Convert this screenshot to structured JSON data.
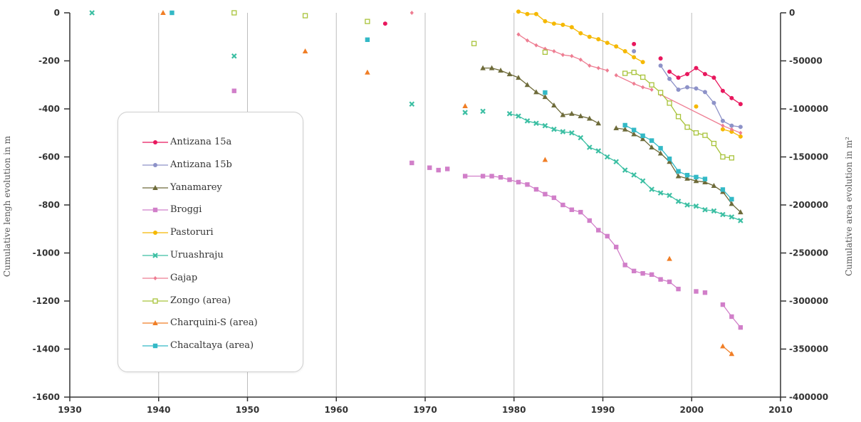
{
  "chart_data": {
    "type": "line",
    "xlim": [
      1930,
      2010
    ],
    "x_ticks": [
      "1930",
      "1940",
      "1950",
      "1960",
      "1970",
      "1980",
      "1990",
      "2000",
      "2010"
    ],
    "ylim_left": [
      -1600,
      0
    ],
    "y_ticks_left": [
      "0",
      "-200",
      "-400",
      "-600",
      "-800",
      "-1000",
      "-1200",
      "-1400",
      "-1600"
    ],
    "ylim_right": [
      -400000,
      0
    ],
    "y_ticks_right": [
      "0",
      "-50000",
      "-100000",
      "-150000",
      "-200000",
      "-250000",
      "-300000",
      "-350000",
      "-400000"
    ],
    "ylabel_left": "Cumulative lengh evolution in m",
    "ylabel_right": "Cumulative area evolution in m²",
    "grid": "vertical",
    "legend_position": "inside-left",
    "series": [
      {
        "name": "Antizana 15a",
        "color": "#e8175d",
        "marker": "circle",
        "axis": "left",
        "points": [
          [
            1965.5,
            -45
          ],
          [
            1993.5,
            -130
          ],
          [
            1996.5,
            -190
          ],
          [
            1997.5,
            -245
          ],
          [
            1998.5,
            -270
          ],
          [
            1999.5,
            -255
          ],
          [
            2000.5,
            -230
          ],
          [
            2001.5,
            -255
          ],
          [
            2002.5,
            -270
          ],
          [
            2003.5,
            -325
          ],
          [
            2004.5,
            -355
          ],
          [
            2005.5,
            -380
          ]
        ],
        "lines": [
          [
            3,
            11
          ]
        ]
      },
      {
        "name": "Antizana 15b",
        "color": "#8d92c8",
        "marker": "circle",
        "axis": "left",
        "points": [
          [
            1993.5,
            -160
          ],
          [
            1996.5,
            -220
          ],
          [
            1997.5,
            -275
          ],
          [
            1998.5,
            -320
          ],
          [
            1999.5,
            -310
          ],
          [
            2000.5,
            -315
          ],
          [
            2001.5,
            -330
          ],
          [
            2002.5,
            -375
          ],
          [
            2003.5,
            -450
          ],
          [
            2004.5,
            -470
          ],
          [
            2005.5,
            -475
          ]
        ],
        "lines": [
          [
            1,
            10
          ]
        ]
      },
      {
        "name": "Yanamarey",
        "color": "#6e6b3a",
        "marker": "triangle",
        "axis": "left",
        "points": [
          [
            1976.5,
            -230
          ],
          [
            1977.5,
            -230
          ],
          [
            1978.5,
            -240
          ],
          [
            1979.5,
            -255
          ],
          [
            1980.5,
            -270
          ],
          [
            1981.5,
            -300
          ],
          [
            1982.5,
            -330
          ],
          [
            1983.5,
            -350
          ],
          [
            1984.5,
            -385
          ],
          [
            1985.5,
            -425
          ],
          [
            1986.5,
            -420
          ],
          [
            1987.5,
            -430
          ],
          [
            1988.5,
            -440
          ],
          [
            1989.5,
            -460
          ],
          [
            1991.5,
            -480
          ],
          [
            1992.5,
            -485
          ],
          [
            1993.5,
            -505
          ],
          [
            1994.5,
            -525
          ],
          [
            1995.5,
            -560
          ],
          [
            1996.5,
            -585
          ],
          [
            1997.5,
            -620
          ],
          [
            1998.5,
            -680
          ],
          [
            1999.5,
            -690
          ],
          [
            2000.5,
            -700
          ],
          [
            2001.5,
            -705
          ],
          [
            2002.5,
            -720
          ],
          [
            2003.5,
            -745
          ],
          [
            2004.5,
            -795
          ],
          [
            2005.5,
            -830
          ]
        ],
        "lines": [
          [
            0,
            13
          ],
          [
            14,
            28
          ]
        ]
      },
      {
        "name": "Broggi",
        "color": "#d17fc9",
        "marker": "square",
        "axis": "left",
        "points": [
          [
            1948.5,
            -325
          ],
          [
            1968.5,
            -625
          ],
          [
            1970.5,
            -645
          ],
          [
            1971.5,
            -655
          ],
          [
            1972.5,
            -650
          ],
          [
            1974.5,
            -680
          ],
          [
            1976.5,
            -680
          ],
          [
            1977.5,
            -680
          ],
          [
            1978.5,
            -685
          ],
          [
            1979.5,
            -695
          ],
          [
            1980.5,
            -705
          ],
          [
            1981.5,
            -715
          ],
          [
            1982.5,
            -735
          ],
          [
            1983.5,
            -755
          ],
          [
            1984.5,
            -770
          ],
          [
            1985.5,
            -800
          ],
          [
            1986.5,
            -820
          ],
          [
            1987.5,
            -830
          ],
          [
            1988.5,
            -865
          ],
          [
            1989.5,
            -905
          ],
          [
            1990.5,
            -930
          ],
          [
            1991.5,
            -975
          ],
          [
            1992.5,
            -1050
          ],
          [
            1993.5,
            -1075
          ],
          [
            1994.5,
            -1085
          ],
          [
            1995.5,
            -1090
          ],
          [
            1996.5,
            -1110
          ],
          [
            1997.5,
            -1120
          ],
          [
            1998.5,
            -1150
          ],
          [
            2000.5,
            -1160
          ],
          [
            2001.5,
            -1165
          ],
          [
            2003.5,
            -1215
          ],
          [
            2004.5,
            -1265
          ],
          [
            2005.5,
            -1310
          ]
        ],
        "lines": [
          [
            5,
            28
          ],
          [
            31,
            33
          ]
        ]
      },
      {
        "name": "Pastoruri",
        "color": "#f5b800",
        "marker": "circle",
        "axis": "left",
        "points": [
          [
            1980.5,
            5
          ],
          [
            1981.5,
            -5
          ],
          [
            1982.5,
            -5
          ],
          [
            1983.5,
            -35
          ],
          [
            1984.5,
            -45
          ],
          [
            1985.5,
            -50
          ],
          [
            1986.5,
            -60
          ],
          [
            1987.5,
            -85
          ],
          [
            1988.5,
            -100
          ],
          [
            1989.5,
            -110
          ],
          [
            1990.5,
            -125
          ],
          [
            1991.5,
            -140
          ],
          [
            1992.5,
            -160
          ],
          [
            1993.5,
            -185
          ],
          [
            1994.5,
            -205
          ],
          [
            2000.5,
            -390
          ],
          [
            2003.5,
            -485
          ],
          [
            2004.5,
            -495
          ],
          [
            2005.5,
            -515
          ]
        ],
        "lines": [
          [
            0,
            14
          ],
          [
            16,
            18
          ]
        ]
      },
      {
        "name": "Uruashraju",
        "color": "#3cbfa3",
        "marker": "x",
        "axis": "left",
        "points": [
          [
            1932.5,
            0
          ],
          [
            1948.5,
            -180
          ],
          [
            1968.5,
            -380
          ],
          [
            1974.5,
            -415
          ],
          [
            1976.5,
            -410
          ],
          [
            1979.5,
            -420
          ],
          [
            1980.5,
            -430
          ],
          [
            1981.5,
            -450
          ],
          [
            1982.5,
            -460
          ],
          [
            1983.5,
            -470
          ],
          [
            1984.5,
            -485
          ],
          [
            1985.5,
            -495
          ],
          [
            1986.5,
            -500
          ],
          [
            1987.5,
            -520
          ],
          [
            1988.5,
            -560
          ],
          [
            1989.5,
            -575
          ],
          [
            1990.5,
            -600
          ],
          [
            1991.5,
            -620
          ],
          [
            1992.5,
            -655
          ],
          [
            1993.5,
            -675
          ],
          [
            1994.5,
            -700
          ],
          [
            1995.5,
            -735
          ],
          [
            1996.5,
            -750
          ],
          [
            1997.5,
            -760
          ],
          [
            1998.5,
            -785
          ],
          [
            1999.5,
            -800
          ],
          [
            2000.5,
            -805
          ],
          [
            2001.5,
            -820
          ],
          [
            2002.5,
            -825
          ],
          [
            2003.5,
            -840
          ],
          [
            2004.5,
            -850
          ],
          [
            2005.5,
            -865
          ]
        ],
        "lines": [
          [
            5,
            31
          ]
        ]
      },
      {
        "name": "Gajap",
        "color": "#ee7d92",
        "marker": "diamond",
        "axis": "left",
        "points": [
          [
            1968.5,
            0
          ],
          [
            1980.5,
            -90
          ],
          [
            1981.5,
            -115
          ],
          [
            1982.5,
            -135
          ],
          [
            1983.5,
            -150
          ],
          [
            1984.5,
            -160
          ],
          [
            1985.5,
            -175
          ],
          [
            1986.5,
            -180
          ],
          [
            1987.5,
            -195
          ],
          [
            1988.5,
            -220
          ],
          [
            1989.5,
            -230
          ],
          [
            1990.5,
            -240
          ],
          [
            1991.5,
            -260
          ],
          [
            1993.5,
            -295
          ],
          [
            1994.5,
            -310
          ],
          [
            1995.5,
            -320
          ],
          [
            1996.5,
            -340
          ],
          [
            2003.5,
            -470
          ],
          [
            2004.5,
            -485
          ],
          [
            2005.5,
            -500
          ]
        ],
        "lines": [
          [
            1,
            11
          ],
          [
            12,
            15
          ],
          [
            16,
            19
          ]
        ]
      },
      {
        "name": "Zongo (area)",
        "color": "#a8c33a",
        "marker": "open-square",
        "axis": "right",
        "points": [
          [
            1948.5,
            0
          ],
          [
            1956.5,
            -3000
          ],
          [
            1963.5,
            -9000
          ],
          [
            1975.5,
            -32000
          ],
          [
            1983.5,
            -41000
          ],
          [
            1992.5,
            -63000
          ],
          [
            1993.5,
            -62000
          ],
          [
            1994.5,
            -67000
          ],
          [
            1995.5,
            -75000
          ],
          [
            1996.5,
            -83000
          ],
          [
            1997.5,
            -94000
          ],
          [
            1998.5,
            -108000
          ],
          [
            1999.5,
            -119000
          ],
          [
            2000.5,
            -125000
          ],
          [
            2001.5,
            -127500
          ],
          [
            2002.5,
            -136000
          ],
          [
            2003.5,
            -150000
          ],
          [
            2004.5,
            -151000
          ]
        ],
        "lines": [
          [
            5,
            17
          ]
        ]
      },
      {
        "name": "Charquini-S (area)",
        "color": "#f07e26",
        "marker": "triangle",
        "axis": "right",
        "points": [
          [
            1940.5,
            0
          ],
          [
            1956.5,
            -40000
          ],
          [
            1963.5,
            -62000
          ],
          [
            1974.5,
            -97000
          ],
          [
            1983.5,
            -153000
          ],
          [
            1997.5,
            -256000
          ],
          [
            2003.5,
            -347000
          ],
          [
            2004.5,
            -355000
          ]
        ],
        "lines": [
          [
            6,
            7
          ]
        ]
      },
      {
        "name": "Chacaltaya (area)",
        "color": "#33b9c6",
        "marker": "square",
        "axis": "right",
        "points": [
          [
            1941.5,
            0
          ],
          [
            1963.5,
            -28000
          ],
          [
            1983.5,
            -83000
          ],
          [
            1992.5,
            -117000
          ],
          [
            1993.5,
            -122000
          ],
          [
            1994.5,
            -128000
          ],
          [
            1995.5,
            -133000
          ],
          [
            1996.5,
            -141000
          ],
          [
            1997.5,
            -152000
          ],
          [
            1998.5,
            -165000
          ],
          [
            1999.5,
            -169000
          ],
          [
            2000.5,
            -171000
          ],
          [
            2001.5,
            -173000
          ],
          [
            2003.5,
            -184000
          ],
          [
            2004.5,
            -194000
          ]
        ],
        "lines": [
          [
            3,
            12
          ],
          [
            13,
            14
          ]
        ]
      }
    ]
  }
}
